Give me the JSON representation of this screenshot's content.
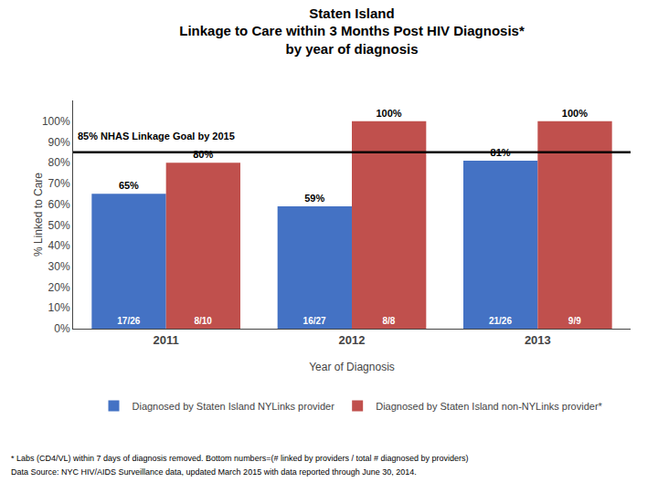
{
  "chart_data": {
    "type": "bar",
    "title": "Staten Island",
    "subtitle": [
      "Linkage to Care within 3 Months Post HIV Diagnosis*",
      "by year of diagnosis"
    ],
    "xlabel": "Year of Diagnosis",
    "ylabel": "% Linked to Care",
    "categories": [
      "2011",
      "2012",
      "2013"
    ],
    "series": [
      {
        "name": "Diagnosed by Staten Island NYLinks provider",
        "color": "#4472C4",
        "values": [
          65,
          59,
          81
        ],
        "value_labels": [
          "65%",
          "59%",
          "81%"
        ],
        "bottom_labels": [
          "17/26",
          "16/27",
          "21/26"
        ]
      },
      {
        "name": "Diagnosed by Staten Island non-NYLinks provider*",
        "color": "#C0504D",
        "values": [
          80,
          100,
          100
        ],
        "value_labels": [
          "80%",
          "100%",
          "100%"
        ],
        "bottom_labels": [
          "8/10",
          "8/8",
          "9/9"
        ]
      }
    ],
    "data_labels": true,
    "goal_line": {
      "value": 85,
      "label": "85% NHAS Linkage Goal by 2015"
    },
    "ylim": [
      0,
      110
    ],
    "yticks": [
      {
        "value": 0,
        "label": "0%"
      },
      {
        "value": 10,
        "label": "10%"
      },
      {
        "value": 20,
        "label": "20%"
      },
      {
        "value": 30,
        "label": "30%"
      },
      {
        "value": 40,
        "label": "40%"
      },
      {
        "value": 50,
        "label": "50%"
      },
      {
        "value": 60,
        "label": "60%"
      },
      {
        "value": 70,
        "label": "70%"
      },
      {
        "value": 80,
        "label": "80%"
      },
      {
        "value": 90,
        "label": "90%"
      },
      {
        "value": 100,
        "label": "100%"
      }
    ],
    "grid": false,
    "legend": "bottom",
    "footnotes": [
      "* Labs (CD4/VL) within 7 days of diagnosis removed. Bottom numbers=(# linked by providers / total # diagnosed by providers)",
      "Data Source: NYC HIV/AIDS Surveillance data, updated March 2015 with data reported through June 30, 2014."
    ]
  }
}
